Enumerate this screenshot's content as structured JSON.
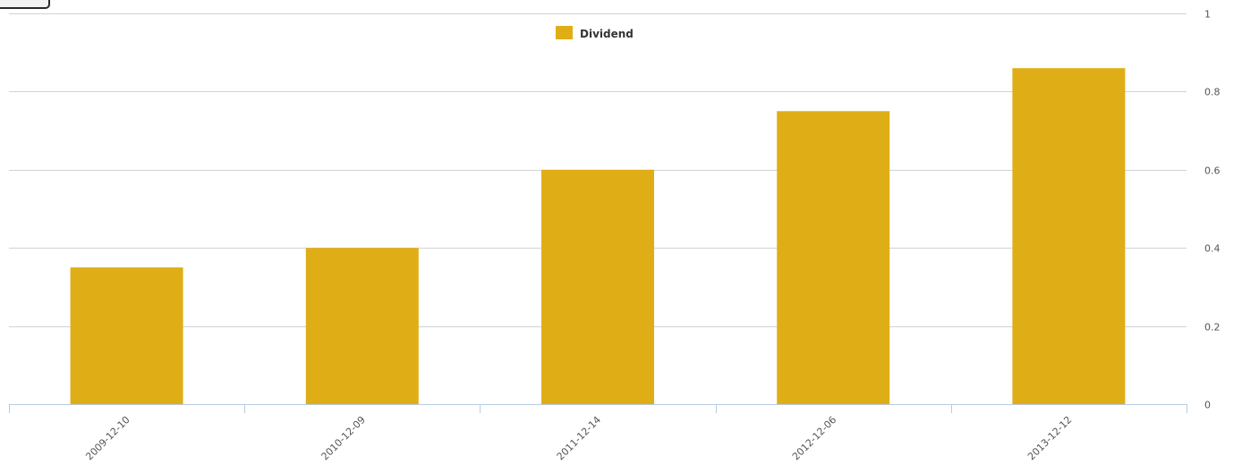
{
  "colors": {
    "series": "#dfae16",
    "grid": "#cfd3d8",
    "axis": "#b9cbe0",
    "tick_text": "#555555"
  },
  "chart_data": {
    "type": "bar",
    "title": "",
    "xlabel": "",
    "ylabel": "",
    "categories": [
      "2009-12-10",
      "2010-12-09",
      "2011-12-14",
      "2012-12-06",
      "2013-12-12"
    ],
    "series": [
      {
        "name": "Dividend",
        "values": [
          0.35,
          0.4,
          0.6,
          0.75,
          0.86
        ]
      }
    ],
    "ylim": [
      0,
      1
    ],
    "yticks": [
      "0",
      "0.2",
      "0.4",
      "0.6",
      "0.8",
      "1"
    ],
    "y_axis_side": "right",
    "grid": true,
    "legend": "top-center"
  }
}
